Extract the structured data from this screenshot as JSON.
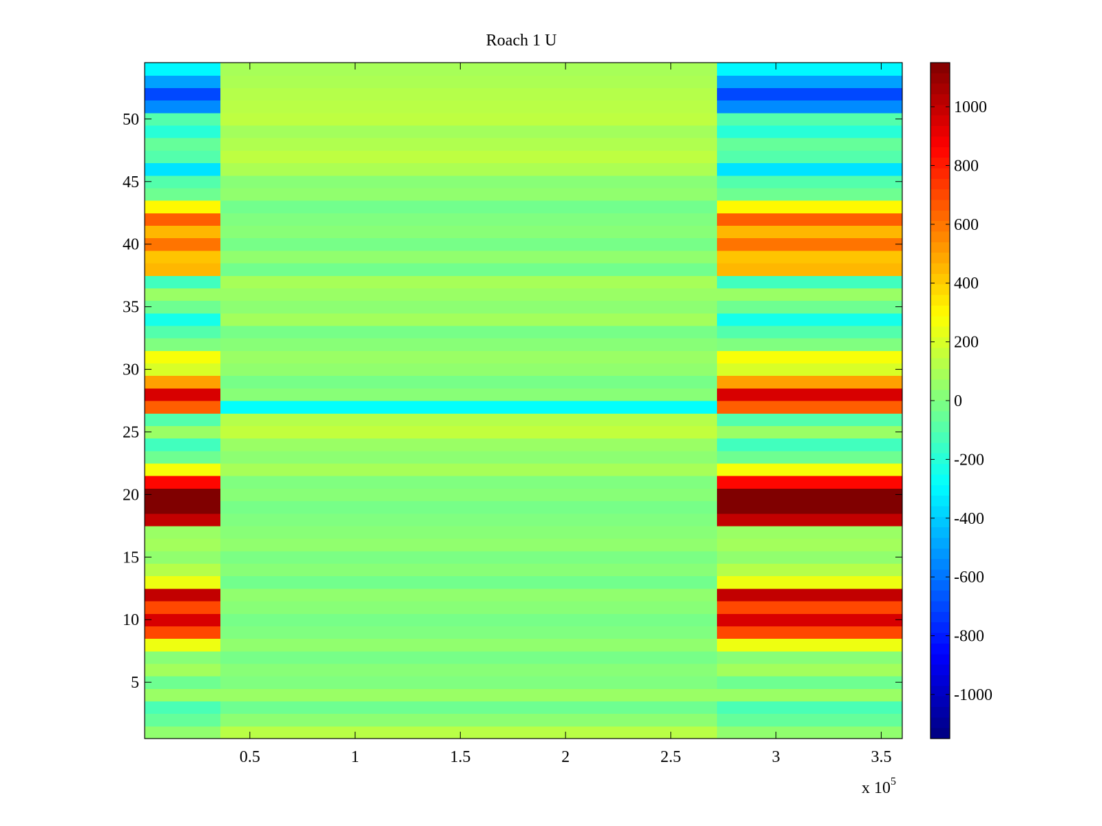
{
  "chart_data": {
    "type": "heatmap",
    "title": "Roach 1 U",
    "xlabel": "",
    "ylabel": "",
    "x_multiplier": "x 10",
    "x_exponent": "5",
    "xlim": [
      0,
      3.6
    ],
    "ylim": [
      0.5,
      54.5
    ],
    "xticks": [
      0.5,
      1,
      1.5,
      2,
      2.5,
      3,
      3.5
    ],
    "xtick_labels": [
      "0.5",
      "1",
      "1.5",
      "2",
      "2.5",
      "3",
      "3.5"
    ],
    "yticks": [
      5,
      10,
      15,
      20,
      25,
      30,
      35,
      40,
      45,
      50
    ],
    "ytick_labels": [
      "5",
      "10",
      "15",
      "20",
      "25",
      "30",
      "35",
      "40",
      "45",
      "50"
    ],
    "colormap": "jet",
    "clim": [
      -1150,
      1150
    ],
    "colorbar_ticks": [
      1000,
      800,
      600,
      400,
      200,
      0,
      -200,
      -400,
      -600,
      -800,
      -1000
    ],
    "colorbar_tick_labels": [
      "1000",
      "800",
      "600",
      "400",
      "200",
      "0",
      "-200",
      "-400",
      "-600",
      "-800",
      "-1000"
    ],
    "segments": [
      {
        "name": "left-block",
        "x_start": 0.0,
        "x_end": 0.36
      },
      {
        "name": "middle-block",
        "x_start": 0.36,
        "x_end": 2.72
      },
      {
        "name": "right-block",
        "x_start": 2.72,
        "x_end": 3.6
      }
    ],
    "rows": [
      1,
      2,
      3,
      4,
      5,
      6,
      7,
      8,
      9,
      10,
      11,
      12,
      13,
      14,
      15,
      16,
      17,
      18,
      19,
      20,
      21,
      22,
      23,
      24,
      25,
      26,
      27,
      28,
      29,
      30,
      31,
      32,
      33,
      34,
      35,
      36,
      37,
      38,
      39,
      40,
      41,
      42,
      43,
      44,
      45,
      46,
      47,
      48,
      49,
      50,
      51,
      52,
      53,
      54
    ],
    "edge_block_values": [
      40,
      -60,
      -120,
      60,
      -40,
      80,
      20,
      250,
      700,
      950,
      700,
      1000,
      250,
      120,
      40,
      80,
      60,
      1000,
      1150,
      1150,
      850,
      270,
      -40,
      -140,
      60,
      -100,
      650,
      950,
      500,
      200,
      270,
      0,
      -100,
      -240,
      -40,
      60,
      -140,
      450,
      420,
      600,
      450,
      650,
      300,
      -40,
      -100,
      -350,
      -100,
      -60,
      -200,
      -100,
      -550,
      -700,
      -500,
      -300
    ],
    "middle_block_values": [
      130,
      30,
      -40,
      60,
      0,
      20,
      -20,
      40,
      0,
      -20,
      20,
      40,
      -30,
      20,
      -10,
      40,
      20,
      0,
      -20,
      20,
      0,
      90,
      30,
      60,
      150,
      120,
      -280,
      20,
      -20,
      40,
      60,
      20,
      -20,
      80,
      30,
      60,
      90,
      -30,
      40,
      -20,
      20,
      0,
      -30,
      40,
      20,
      100,
      140,
      110,
      80,
      140,
      130,
      120,
      100,
      90
    ]
  }
}
